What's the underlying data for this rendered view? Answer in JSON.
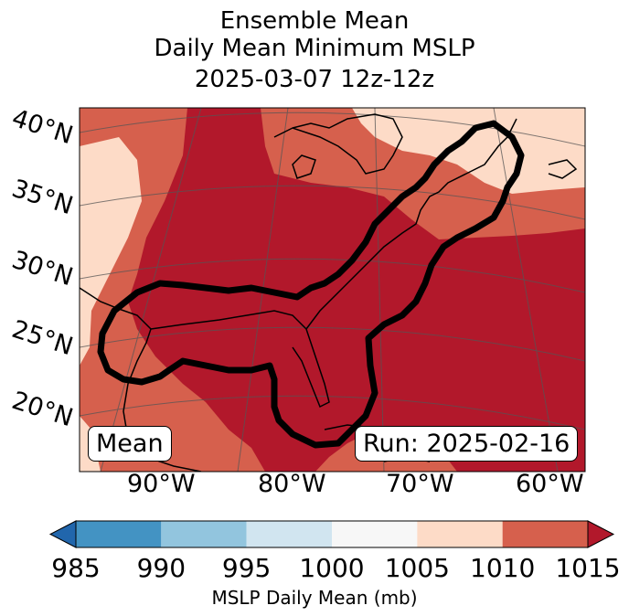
{
  "title": {
    "line1": "Ensemble Mean",
    "line2": "Daily Mean Minimum MSLP",
    "line3": "2025-03-07 12z-12z"
  },
  "map": {
    "lat_labels": [
      "40°N",
      "35°N",
      "30°N",
      "25°N",
      "20°N"
    ],
    "lon_labels": [
      "90°W",
      "80°W",
      "70°W",
      "60°W"
    ],
    "left_box": "Mean",
    "right_box": "Run: 2025-02-16"
  },
  "colorbar": {
    "ticks": [
      "985",
      "990",
      "995",
      "1000",
      "1005",
      "1010",
      "1015"
    ],
    "label": "MSLP Daily Mean (mb)",
    "colors": [
      "#2166ac",
      "#4393c3",
      "#92c5de",
      "#d1e5f0",
      "#f7f7f7",
      "#fddbc7",
      "#d6604d",
      "#b2182b"
    ]
  }
}
